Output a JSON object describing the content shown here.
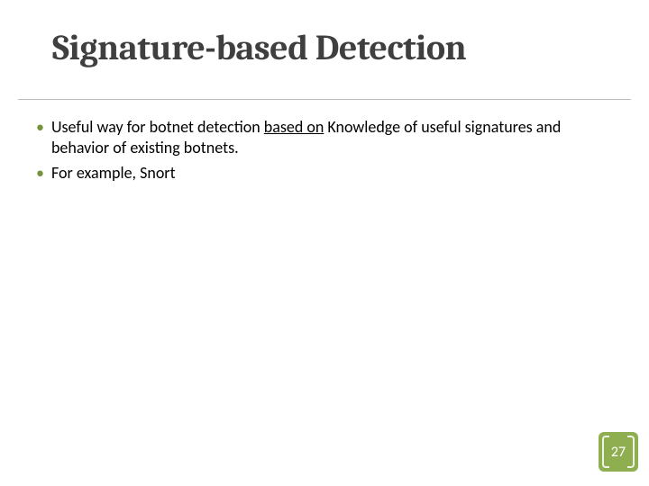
{
  "slide": {
    "title": "Signature-based Detection",
    "title_fontsize": 40,
    "title_color": "#3f3f3f",
    "underline_color": "#bfbfbf",
    "background_color": "#ffffff",
    "bullets": [
      {
        "text_before": "Useful way for botnet detection ",
        "text_underlined": "based on",
        "text_after": " Knowledge of useful signatures and behavior of existing botnets.",
        "has_underline": true
      },
      {
        "text_before": " For example, Snort",
        "text_underlined": "",
        "text_after": "",
        "has_underline": false
      }
    ],
    "bullet_fontsize": 18,
    "bullet_color": "#000000",
    "bullet_marker_color": "#76923c",
    "page_number": "27",
    "badge_bg": "#8fae4f",
    "badge_text_color": "#ffffff"
  }
}
